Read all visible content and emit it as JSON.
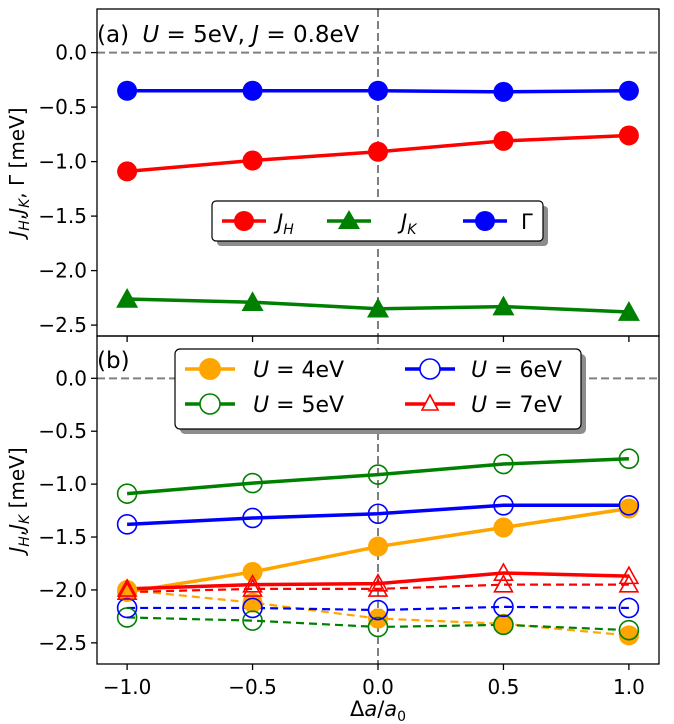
{
  "chart_data": [
    {
      "type": "line",
      "panel_label": "(a)",
      "title": "U = 5eV, J = 0.8eV",
      "title_parts": {
        "u_sym": "U",
        "u_val": " = 5eV, ",
        "j_sym": "J",
        "j_val": " = 0.8eV"
      },
      "ylabel": "J_H, J_K, Γ [meV]",
      "ylabel_parts": {
        "jh_j": "J",
        "jh_sub": "H",
        "comma1": ",",
        "jk_j": "J",
        "jk_sub": "K",
        "comma2": ", Γ [meV]"
      },
      "xlim": [
        -1.12,
        1.12
      ],
      "ylim": [
        -2.6,
        0.4
      ],
      "yticks": [
        0.0,
        -0.5,
        -1.0,
        -1.5,
        -2.0,
        -2.5
      ],
      "ytick_labels": [
        "0.0",
        "−0.5",
        "−1.0",
        "−1.5",
        "−2.0",
        "−2.5"
      ],
      "hline": 0.0,
      "vline": 0.0,
      "legend": {
        "position": "center-right",
        "entries": [
          {
            "name": "J_H",
            "sym": "J",
            "sub": "H",
            "color": "#ff0000",
            "marker": "circle"
          },
          {
            "name": "J_K",
            "sym": "J",
            "sub": "K",
            "color": "#008000",
            "marker": "triangle"
          },
          {
            "name": "Γ",
            "sym": "Γ",
            "sub": "",
            "color": "#0000ff",
            "marker": "circle"
          }
        ]
      },
      "x": [
        -1.0,
        -0.5,
        0.0,
        0.5,
        1.0
      ],
      "series": [
        {
          "name": "J_H",
          "color": "#ff0000",
          "marker": "circle",
          "fill": true,
          "dash": false,
          "width": 3.5,
          "values": [
            -1.09,
            -0.99,
            -0.91,
            -0.81,
            -0.76
          ]
        },
        {
          "name": "J_K",
          "color": "#008000",
          "marker": "triangle",
          "fill": true,
          "dash": false,
          "width": 3.5,
          "values": [
            -2.26,
            -2.29,
            -2.35,
            -2.33,
            -2.38
          ]
        },
        {
          "name": "Γ",
          "color": "#0000ff",
          "marker": "circle",
          "fill": true,
          "dash": false,
          "width": 3.5,
          "values": [
            -0.35,
            -0.35,
            -0.35,
            -0.36,
            -0.35
          ]
        }
      ]
    },
    {
      "type": "line",
      "panel_label": "(b)",
      "ylabel": "J_H, J_K [meV]",
      "ylabel_parts": {
        "jh_j": "J",
        "jh_sub": "H",
        "comma1": ",",
        "jk_j": "J",
        "jk_sub": "K",
        "rest": " [meV]"
      },
      "xlabel": "Δa/a0",
      "xlabel_parts": {
        "delta": "Δ",
        "a": "a",
        "slash": "/",
        "a0": "a",
        "sub0": "0"
      },
      "xlim": [
        -1.12,
        1.12
      ],
      "ylim": [
        -2.7,
        0.4
      ],
      "xticks": [
        -1.0,
        -0.5,
        0.0,
        0.5,
        1.0
      ],
      "xtick_labels": [
        "−1.0",
        "−0.5",
        "0.0",
        "0.5",
        "1.0"
      ],
      "yticks": [
        0.0,
        -0.5,
        -1.0,
        -1.5,
        -2.0,
        -2.5
      ],
      "ytick_labels": [
        "0.0",
        "−0.5",
        "−1.0",
        "−1.5",
        "−2.0",
        "−2.5"
      ],
      "hline": 0.0,
      "vline": 0.0,
      "legend": {
        "position": "upper-center",
        "entries": [
          {
            "name": "U = 4eV",
            "sym": "U",
            "rest": " = 4eV",
            "color": "#ffa500",
            "marker": "circle",
            "fill": true
          },
          {
            "name": "U = 5eV",
            "sym": "U",
            "rest": " = 5eV",
            "color": "#008000",
            "marker": "circle",
            "fill": false
          },
          {
            "name": "U = 6eV",
            "sym": "U",
            "rest": " = 6eV",
            "color": "#0000ff",
            "marker": "circle",
            "fill": false
          },
          {
            "name": "U = 7eV",
            "sym": "U",
            "rest": " = 7eV",
            "color": "#ff0000",
            "marker": "triangle",
            "fill": false
          }
        ]
      },
      "x": [
        -1.0,
        -0.5,
        0.0,
        0.5,
        1.0
      ],
      "series": [
        {
          "name": "U=4eV J_H",
          "color": "#ffa500",
          "marker": "circle",
          "fill": true,
          "dash": false,
          "width": 3.5,
          "values": [
            -2.02,
            -1.83,
            -1.59,
            -1.41,
            -1.23
          ]
        },
        {
          "name": "U=4eV J_K",
          "color": "#ffa500",
          "marker": "circle",
          "fill": true,
          "dash": true,
          "width": 2.2,
          "values": [
            -2.0,
            -2.12,
            -2.27,
            -2.32,
            -2.43
          ]
        },
        {
          "name": "U=5eV J_H",
          "color": "#008000",
          "marker": "circle",
          "fill": false,
          "dash": false,
          "width": 3.5,
          "values": [
            -1.09,
            -0.99,
            -0.91,
            -0.81,
            -0.76
          ]
        },
        {
          "name": "U=5eV J_K",
          "color": "#008000",
          "marker": "circle",
          "fill": false,
          "dash": true,
          "width": 2.2,
          "values": [
            -2.26,
            -2.29,
            -2.35,
            -2.33,
            -2.38
          ]
        },
        {
          "name": "U=6eV J_H",
          "color": "#0000ff",
          "marker": "circle",
          "fill": false,
          "dash": false,
          "width": 3.5,
          "values": [
            -1.38,
            -1.32,
            -1.28,
            -1.2,
            -1.2
          ]
        },
        {
          "name": "U=6eV J_K",
          "color": "#0000ff",
          "marker": "circle",
          "fill": false,
          "dash": true,
          "width": 2.2,
          "values": [
            -2.17,
            -2.17,
            -2.19,
            -2.16,
            -2.17
          ]
        },
        {
          "name": "U=7eV J_H",
          "color": "#ff0000",
          "marker": "triangle",
          "fill": false,
          "dash": false,
          "width": 3.5,
          "values": [
            -1.99,
            -1.95,
            -1.94,
            -1.84,
            -1.87
          ]
        },
        {
          "name": "U=7eV J_K",
          "color": "#ff0000",
          "marker": "triangle",
          "fill": false,
          "dash": true,
          "width": 2.2,
          "values": [
            -2.02,
            -1.99,
            -1.99,
            -1.95,
            -1.95
          ]
        }
      ]
    }
  ]
}
